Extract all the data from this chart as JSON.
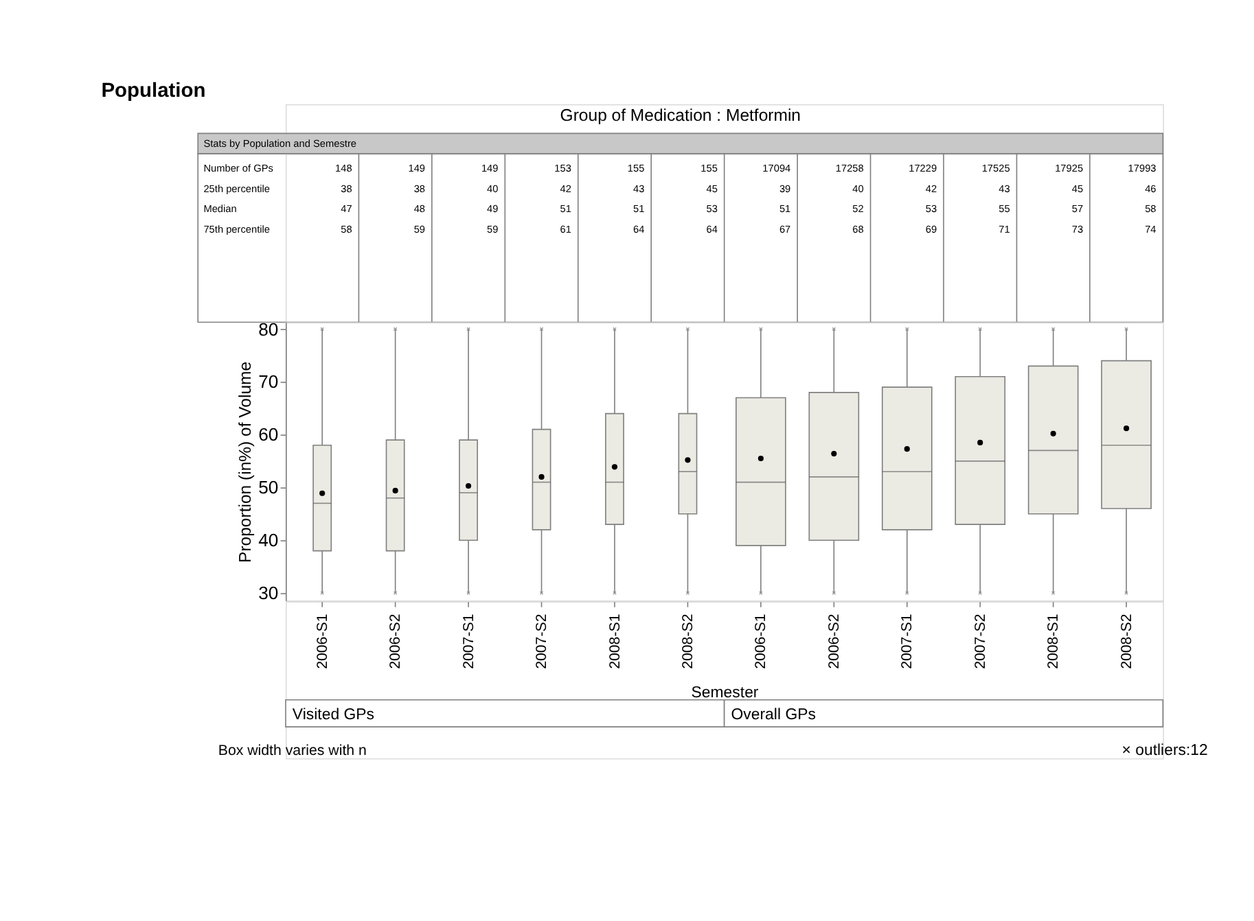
{
  "chart_data": [
    {
      "type": "other",
      "title": "Population",
      "subtitle": "Group of Medication : Metformin",
      "annotations": [
        "Stats by Population and Semestre",
        "Number of GPs",
        "148",
        "149",
        "149",
        "153",
        "155",
        "155",
        "17094",
        "17258",
        "17229",
        "17525",
        "17925",
        "17993",
        "25th percentile",
        "38",
        "38",
        "40",
        "42",
        "43",
        "45",
        "39",
        "40",
        "42",
        "43",
        "45",
        "46",
        "Median",
        "47",
        "48",
        "49",
        "51",
        "51",
        "53",
        "51",
        "52",
        "53",
        "55",
        "57",
        "58",
        "75th percentile",
        "58",
        "59",
        "59",
        "61",
        "64",
        "64",
        "67",
        "68",
        "69",
        "71",
        "73",
        "74"
      ]
    },
    {
      "type": "box",
      "xlabel": "Semester",
      "ylabel": "Proportion (in%) of Volume",
      "categories": [
        "2006-S1",
        "2006-S2",
        "2007-S1",
        "2007-S2",
        "2008-S1",
        "2008-S2",
        "2006-S1",
        "2006-S2",
        "2007-S1",
        "2007-S2",
        "2008-S1",
        "2008-S2"
      ],
      "ylim": [
        28.5,
        81.3
      ],
      "yticks": [
        30,
        40,
        50,
        60,
        70,
        80
      ],
      "annotations": [
        "Visited GPs",
        "Overall GPs",
        "Box width varies with n",
        "× outliers:12"
      ],
      "series": [
        {
          "color": "#ebeae3",
          "boxes": [
            {
              "low": 30,
              "q1": 38,
              "median": 47,
              "q3": 58,
              "high": 80,
              "mean": 48.9,
              "outliers": [
                30,
                80
              ]
            },
            {
              "low": 30,
              "q1": 38,
              "median": 48,
              "q3": 59,
              "high": 80,
              "mean": 49.4,
              "outliers": [
                30,
                80
              ]
            },
            {
              "low": 30,
              "q1": 40,
              "median": 49,
              "q3": 59,
              "high": 80,
              "mean": 50.3,
              "outliers": [
                30,
                80
              ]
            },
            {
              "low": 30,
              "q1": 42,
              "median": 51,
              "q3": 61,
              "high": 80,
              "mean": 52.0,
              "outliers": [
                30,
                80
              ]
            },
            {
              "low": 30,
              "q1": 43,
              "median": 51,
              "q3": 64,
              "high": 80,
              "mean": 53.9,
              "outliers": [
                30,
                80
              ]
            },
            {
              "low": 30,
              "q1": 45,
              "median": 53,
              "q3": 64,
              "high": 80,
              "mean": 55.2,
              "outliers": [
                30,
                80
              ]
            },
            {
              "low": 30,
              "q1": 39,
              "median": 51,
              "q3": 67,
              "high": 80,
              "mean": 55.5,
              "outliers": [
                30,
                80
              ]
            },
            {
              "low": 30,
              "q1": 40,
              "median": 52,
              "q3": 68,
              "high": 80,
              "mean": 56.4,
              "outliers": [
                30,
                80
              ]
            },
            {
              "low": 30,
              "q1": 42,
              "median": 53,
              "q3": 69,
              "high": 80,
              "mean": 57.3,
              "outliers": [
                30,
                80
              ]
            },
            {
              "low": 30,
              "q1": 43,
              "median": 55,
              "q3": 71,
              "high": 80,
              "mean": 58.5,
              "outliers": [
                30,
                80
              ]
            },
            {
              "low": 30,
              "q1": 45,
              "median": 57,
              "q3": 73,
              "high": 80,
              "mean": 60.2,
              "outliers": [
                30,
                80
              ]
            },
            {
              "low": 30,
              "q1": 46,
              "median": 58,
              "q3": 74,
              "high": 80,
              "mean": 61.2,
              "outliers": [
                30,
                80
              ]
            }
          ]
        }
      ]
    }
  ]
}
